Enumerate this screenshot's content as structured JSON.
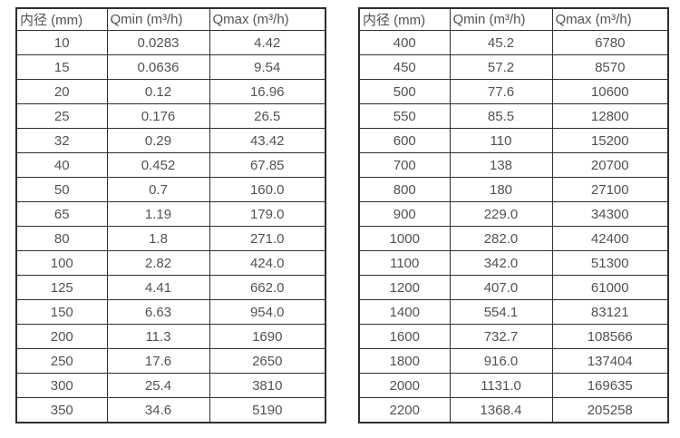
{
  "page": {
    "background_color": "#ffffff",
    "border_color": "#2e2e2e",
    "text_color": "#525252"
  },
  "chart_data": [
    {
      "type": "table",
      "name": "flow-table-small-diameters",
      "columns": [
        "内径 (mm)",
        "Qmin (m³/h)",
        "Qmax (m³/h)"
      ],
      "rows": [
        [
          "10",
          "0.0283",
          "4.42"
        ],
        [
          "15",
          "0.0636",
          "9.54"
        ],
        [
          "20",
          "0.12",
          "16.96"
        ],
        [
          "25",
          "0.176",
          "26.5"
        ],
        [
          "32",
          "0.29",
          "43.42"
        ],
        [
          "40",
          "0.452",
          "67.85"
        ],
        [
          "50",
          "0.7",
          "160.0"
        ],
        [
          "65",
          "1.19",
          "179.0"
        ],
        [
          "80",
          "1.8",
          "271.0"
        ],
        [
          "100",
          "2.82",
          "424.0"
        ],
        [
          "125",
          "4.41",
          "662.0"
        ],
        [
          "150",
          "6.63",
          "954.0"
        ],
        [
          "200",
          "11.3",
          "1690"
        ],
        [
          "250",
          "17.6",
          "2650"
        ],
        [
          "300",
          "25.4",
          "3810"
        ],
        [
          "350",
          "34.6",
          "5190"
        ]
      ]
    },
    {
      "type": "table",
      "name": "flow-table-large-diameters",
      "columns": [
        "内径 (mm)",
        "Qmin (m³/h)",
        "Qmax (m³/h)"
      ],
      "rows": [
        [
          "400",
          "45.2",
          "6780"
        ],
        [
          "450",
          "57.2",
          "8570"
        ],
        [
          "500",
          "77.6",
          "10600"
        ],
        [
          "550",
          "85.5",
          "12800"
        ],
        [
          "600",
          "110",
          "15200"
        ],
        [
          "700",
          "138",
          "20700"
        ],
        [
          "800",
          "180",
          "27100"
        ],
        [
          "900",
          "229.0",
          "34300"
        ],
        [
          "1000",
          "282.0",
          "42400"
        ],
        [
          "1100",
          "342.0",
          "51300"
        ],
        [
          "1200",
          "407.0",
          "61000"
        ],
        [
          "1400",
          "554.1",
          "83121"
        ],
        [
          "1600",
          "732.7",
          "108566"
        ],
        [
          "1800",
          "916.0",
          "137404"
        ],
        [
          "2000",
          "1131.0",
          "169635"
        ],
        [
          "2200",
          "1368.4",
          "205258"
        ]
      ]
    }
  ]
}
